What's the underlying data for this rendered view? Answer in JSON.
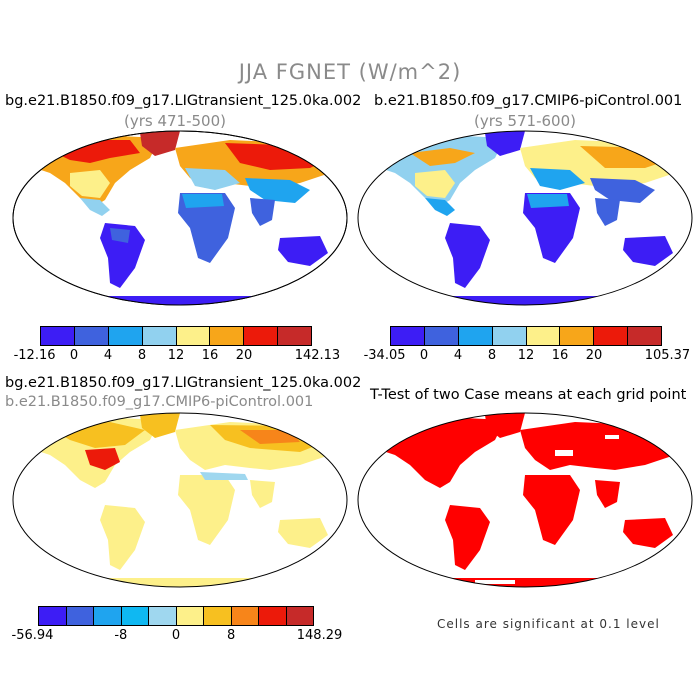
{
  "title": "JJA FGNET (W/m^2)",
  "panels": [
    {
      "title": "bg.e21.B1850.f09_g17.LIGtransient_125.0ka.002",
      "subtitle": "(yrs 471-500)",
      "colorbar": {
        "colors": [
          "#3d1df5",
          "#3f62de",
          "#1fa4ef",
          "#91d1ef",
          "#fdf08a",
          "#f7a61a",
          "#ec1a0a",
          "#c62a29"
        ],
        "tick_labels": [
          "-12.16",
          "0",
          "4",
          "8",
          "12",
          "16",
          "20",
          "142.13"
        ]
      }
    },
    {
      "title": "b.e21.B1850.f09_g17.CMIP6-piControl.001",
      "subtitle": "(yrs 571-600)",
      "colorbar": {
        "colors": [
          "#3d1df5",
          "#3f62de",
          "#1fa4ef",
          "#91d1ef",
          "#fdf08a",
          "#f7a61a",
          "#ec1a0a",
          "#c62a29"
        ],
        "tick_labels": [
          "-34.05",
          "0",
          "4",
          "8",
          "12",
          "16",
          "20",
          "105.37"
        ]
      }
    },
    {
      "title": "bg.e21.B1850.f09_g17.LIGtransient_125.0ka.002",
      "subtitle": "b.e21.B1850.f09_g17.CMIP6-piControl.001",
      "colorbar": {
        "colors": [
          "#3d1df5",
          "#3f62de",
          "#1fa4ef",
          "#0fb8f2",
          "#9fd7ef",
          "#fdf08a",
          "#f7c020",
          "#f7851a",
          "#ec1a0a",
          "#c62a29"
        ],
        "tick_labels": [
          "-56.94",
          "-8",
          "0",
          "8",
          "148.29"
        ]
      }
    },
    {
      "title": "T-Test of two Case means at each grid point",
      "note": "Cells are significant at 0.1 level",
      "significant_color": "#ff0000"
    }
  ]
}
